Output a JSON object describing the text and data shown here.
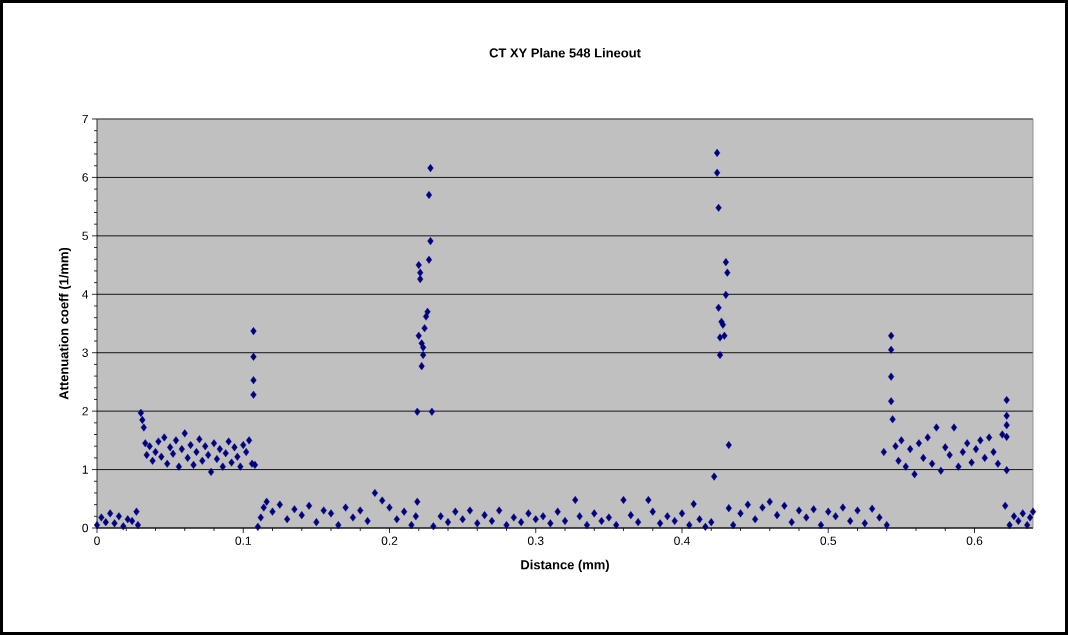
{
  "chart_data": {
    "type": "scatter",
    "title": "CT XY Plane 548 Lineout",
    "xlabel": "Distance (mm)",
    "ylabel": "Attenuation coeff (1/mm)",
    "x": [
      0.0,
      0.003,
      0.006,
      0.009,
      0.012,
      0.015,
      0.018,
      0.021,
      0.024,
      0.027,
      0.028,
      0.03,
      0.031,
      0.032,
      0.033,
      0.034,
      0.036,
      0.038,
      0.04,
      0.042,
      0.044,
      0.046,
      0.048,
      0.05,
      0.052,
      0.054,
      0.056,
      0.058,
      0.06,
      0.062,
      0.064,
      0.066,
      0.068,
      0.07,
      0.072,
      0.074,
      0.076,
      0.078,
      0.08,
      0.082,
      0.084,
      0.086,
      0.088,
      0.09,
      0.092,
      0.094,
      0.096,
      0.098,
      0.1,
      0.102,
      0.104,
      0.106,
      0.108,
      0.107,
      0.107,
      0.107,
      0.107,
      0.11,
      0.112,
      0.114,
      0.116,
      0.12,
      0.125,
      0.13,
      0.135,
      0.14,
      0.145,
      0.15,
      0.155,
      0.16,
      0.165,
      0.17,
      0.175,
      0.18,
      0.185,
      0.19,
      0.195,
      0.2,
      0.205,
      0.21,
      0.215,
      0.218,
      0.219,
      0.228,
      0.227,
      0.228,
      0.227,
      0.22,
      0.221,
      0.221,
      0.226,
      0.225,
      0.224,
      0.22,
      0.222,
      0.223,
      0.223,
      0.222,
      0.219,
      0.229,
      0.23,
      0.235,
      0.24,
      0.245,
      0.25,
      0.255,
      0.26,
      0.265,
      0.27,
      0.275,
      0.28,
      0.285,
      0.29,
      0.295,
      0.3,
      0.305,
      0.31,
      0.315,
      0.32,
      0.327,
      0.33,
      0.335,
      0.34,
      0.345,
      0.35,
      0.355,
      0.36,
      0.365,
      0.37,
      0.377,
      0.38,
      0.385,
      0.39,
      0.395,
      0.4,
      0.405,
      0.408,
      0.412,
      0.416,
      0.42,
      0.424,
      0.424,
      0.425,
      0.43,
      0.431,
      0.43,
      0.425,
      0.427,
      0.428,
      0.429,
      0.426,
      0.426,
      0.422,
      0.432,
      0.432,
      0.435,
      0.44,
      0.445,
      0.45,
      0.455,
      0.46,
      0.465,
      0.47,
      0.475,
      0.48,
      0.485,
      0.49,
      0.495,
      0.5,
      0.505,
      0.51,
      0.515,
      0.52,
      0.525,
      0.53,
      0.535,
      0.54,
      0.543,
      0.543,
      0.543,
      0.543,
      0.544,
      0.538,
      0.546,
      0.548,
      0.55,
      0.553,
      0.556,
      0.559,
      0.562,
      0.565,
      0.568,
      0.571,
      0.574,
      0.577,
      0.58,
      0.583,
      0.586,
      0.589,
      0.592,
      0.595,
      0.598,
      0.601,
      0.604,
      0.607,
      0.61,
      0.613,
      0.616,
      0.619,
      0.622,
      0.622,
      0.622,
      0.622,
      0.622,
      0.621,
      0.624,
      0.627,
      0.63,
      0.633,
      0.636,
      0.638,
      0.64
    ],
    "values": [
      0.05,
      0.18,
      0.1,
      0.25,
      0.08,
      0.2,
      0.03,
      0.15,
      0.12,
      0.28,
      0.05,
      1.97,
      1.85,
      1.72,
      1.45,
      1.25,
      1.4,
      1.15,
      1.3,
      1.48,
      1.22,
      1.55,
      1.1,
      1.38,
      1.27,
      1.5,
      1.05,
      1.35,
      1.62,
      1.2,
      1.42,
      1.08,
      1.3,
      1.52,
      1.15,
      1.4,
      1.25,
      0.96,
      1.45,
      1.18,
      1.35,
      1.05,
      1.28,
      1.48,
      1.12,
      1.38,
      1.22,
      1.05,
      1.42,
      1.3,
      1.5,
      1.1,
      1.08,
      3.37,
      2.93,
      2.53,
      2.28,
      0.02,
      0.18,
      0.35,
      0.45,
      0.28,
      0.4,
      0.15,
      0.32,
      0.22,
      0.38,
      0.1,
      0.3,
      0.25,
      0.05,
      0.35,
      0.18,
      0.3,
      0.12,
      0.6,
      0.47,
      0.35,
      0.15,
      0.28,
      0.05,
      0.2,
      0.45,
      6.16,
      5.7,
      4.91,
      4.59,
      4.5,
      4.37,
      4.26,
      3.7,
      3.62,
      3.42,
      3.29,
      3.16,
      3.09,
      2.96,
      2.77,
      1.99,
      1.99,
      0.03,
      0.2,
      0.1,
      0.28,
      0.15,
      0.3,
      0.08,
      0.22,
      0.12,
      0.3,
      0.05,
      0.18,
      0.1,
      0.25,
      0.15,
      0.2,
      0.08,
      0.28,
      0.12,
      0.48,
      0.2,
      0.05,
      0.25,
      0.12,
      0.18,
      0.05,
      0.48,
      0.22,
      0.1,
      0.48,
      0.28,
      0.08,
      0.2,
      0.12,
      0.25,
      0.05,
      0.41,
      0.15,
      0.02,
      0.1,
      6.42,
      6.08,
      5.48,
      4.55,
      4.37,
      3.99,
      3.77,
      3.53,
      3.48,
      3.29,
      3.26,
      2.96,
      0.88,
      1.42,
      0.34,
      0.05,
      0.25,
      0.4,
      0.15,
      0.35,
      0.45,
      0.22,
      0.38,
      0.1,
      0.3,
      0.18,
      0.32,
      0.05,
      0.28,
      0.2,
      0.35,
      0.12,
      0.3,
      0.08,
      0.33,
      0.18,
      0.05,
      3.29,
      3.05,
      2.59,
      2.17,
      1.86,
      1.3,
      1.4,
      1.15,
      1.5,
      1.05,
      1.35,
      0.92,
      1.45,
      1.2,
      1.55,
      1.1,
      1.72,
      0.98,
      1.38,
      1.25,
      1.72,
      1.05,
      1.3,
      1.45,
      1.12,
      1.35,
      1.5,
      1.2,
      1.55,
      1.3,
      1.1,
      1.6,
      2.19,
      1.92,
      1.76,
      1.56,
      0.99,
      0.38,
      0.05,
      0.2,
      0.12,
      0.25,
      0.05,
      0.18,
      0.28
    ],
    "color": "#000080",
    "marker": "diamond",
    "grid": "y",
    "xlim": [
      0,
      0.64
    ],
    "ylim": [
      0,
      7
    ],
    "xticks": [
      0,
      0.1,
      0.2,
      0.3,
      0.4,
      0.5,
      0.6
    ],
    "yticks": [
      0,
      1,
      2,
      3,
      4,
      5,
      6,
      7
    ]
  }
}
